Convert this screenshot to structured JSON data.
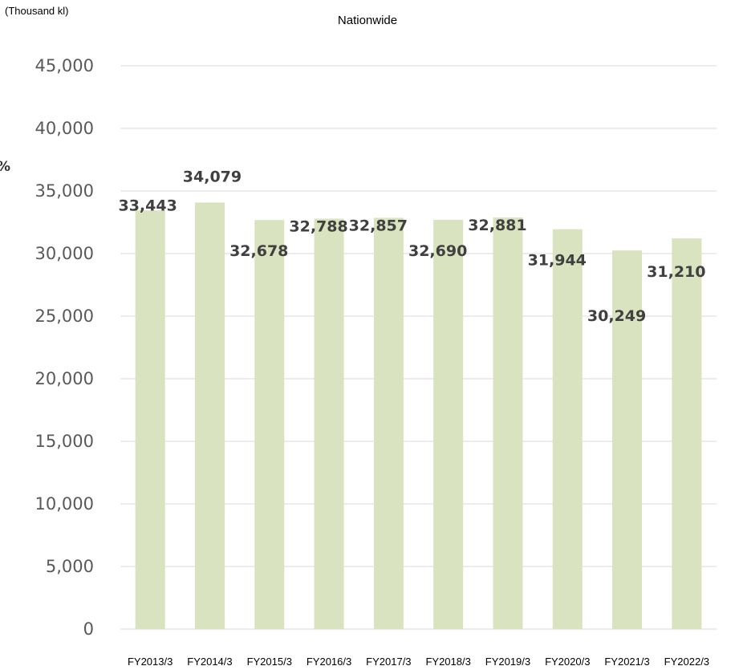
{
  "chart_data": {
    "type": "bar",
    "title": "Nationwide",
    "unit_label": "(Thousand kl)",
    "stray_label": "%",
    "categories": [
      "FY2013/3",
      "FY2014/3",
      "FY2015/3",
      "FY2016/3",
      "FY2017/3",
      "FY2018/3",
      "FY2019/3",
      "FY2020/3",
      "FY2021/3",
      "FY2022/3"
    ],
    "values": [
      33443,
      34079,
      32678,
      32788,
      32857,
      32690,
      32881,
      31944,
      30249,
      31210
    ],
    "data_labels": [
      "33,443",
      "34,079",
      "32,678",
      "32,788",
      "32,857",
      "32,690",
      "32,881",
      "31,944",
      "30,249",
      "31,210"
    ],
    "yticks": [
      0,
      5000,
      10000,
      15000,
      20000,
      25000,
      30000,
      35000,
      40000,
      45000
    ],
    "ytick_labels": [
      "0",
      "5,000",
      "10,000",
      "15,000",
      "20,000",
      "25,000",
      "30,000",
      "35,000",
      "40,000",
      "45,000"
    ],
    "ylim": [
      0,
      45000
    ],
    "grid": true,
    "colors": {
      "bar": "#d9e3bf",
      "grid": "#d9d9d9"
    }
  }
}
